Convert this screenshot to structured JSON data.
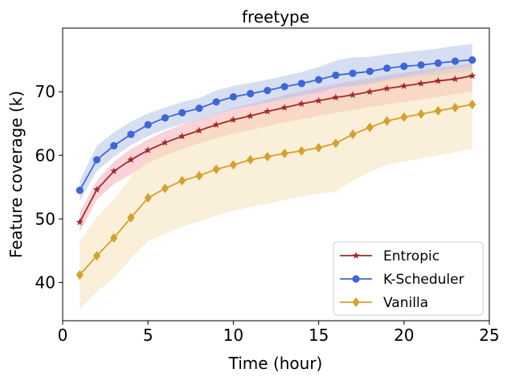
{
  "chart_data": {
    "type": "line",
    "title": "freetype",
    "xlabel": "Time (hour)",
    "ylabel": "Feature coverage (k)",
    "xlim": [
      0,
      25
    ],
    "ylim": [
      34,
      80
    ],
    "xticks": [
      0,
      5,
      10,
      15,
      20,
      25
    ],
    "yticks": [
      40,
      50,
      60,
      70
    ],
    "grid": false,
    "legend_position": "lower-right",
    "x": [
      1,
      2,
      3,
      4,
      5,
      6,
      7,
      8,
      9,
      10,
      11,
      12,
      13,
      14,
      15,
      16,
      17,
      18,
      19,
      20,
      21,
      22,
      23,
      24
    ],
    "series": [
      {
        "name": "Entropic",
        "color": "#a3282e",
        "marker": "star",
        "values": [
          49.5,
          54.6,
          57.5,
          59.3,
          60.8,
          62.0,
          63.0,
          63.9,
          64.8,
          65.6,
          66.2,
          66.9,
          67.5,
          68.1,
          68.6,
          69.1,
          69.5,
          70.0,
          70.5,
          70.9,
          71.3,
          71.7,
          72.0,
          72.5
        ],
        "band_lower": [
          48.0,
          53.0,
          55.5,
          57.0,
          58.8,
          60.0,
          61.0,
          61.9,
          62.7,
          63.4,
          64.0,
          64.6,
          65.2,
          65.7,
          66.2,
          66.7,
          67.1,
          67.6,
          68.0,
          68.4,
          68.8,
          69.2,
          69.6,
          70.0
        ],
        "band_upper": [
          51.0,
          56.0,
          59.0,
          61.0,
          62.5,
          63.8,
          64.8,
          65.7,
          66.6,
          67.4,
          68.1,
          68.8,
          69.5,
          70.1,
          70.7,
          71.2,
          71.7,
          72.1,
          72.6,
          73.0,
          73.4,
          73.8,
          74.1,
          74.5
        ],
        "band_color": "#f4a7b1"
      },
      {
        "name": "K-Scheduler",
        "color": "#3f66d6",
        "marker": "circle",
        "values": [
          54.5,
          59.3,
          61.5,
          63.3,
          64.8,
          65.9,
          66.7,
          67.4,
          68.4,
          69.2,
          69.7,
          70.2,
          70.8,
          71.3,
          71.9,
          72.6,
          72.9,
          73.2,
          73.7,
          74.0,
          74.2,
          74.5,
          74.8,
          75.0
        ],
        "band_lower": [
          52.8,
          57.5,
          59.8,
          61.6,
          63.0,
          64.1,
          64.9,
          65.6,
          66.5,
          67.2,
          67.8,
          68.3,
          68.9,
          69.4,
          69.9,
          70.6,
          70.9,
          71.3,
          71.8,
          72.1,
          72.4,
          72.7,
          73.0,
          73.3
        ],
        "band_upper": [
          56.0,
          61.5,
          63.6,
          65.3,
          66.6,
          67.5,
          68.4,
          69.0,
          70.2,
          70.9,
          71.4,
          71.9,
          72.5,
          73.1,
          73.9,
          74.9,
          75.4,
          75.5,
          75.9,
          76.2,
          76.5,
          76.8,
          77.2,
          77.5
        ],
        "band_color": "#aec0e6"
      },
      {
        "name": "Vanilla",
        "color": "#d4a12a",
        "marker": "diamond",
        "values": [
          41.2,
          44.2,
          47.0,
          50.2,
          53.3,
          54.8,
          56.0,
          56.8,
          57.8,
          58.5,
          59.3,
          59.8,
          60.3,
          60.7,
          61.2,
          61.9,
          63.3,
          64.4,
          65.4,
          66.0,
          66.5,
          67.0,
          67.5,
          68.0
        ],
        "band_lower": [
          35.8,
          38.5,
          40.8,
          43.8,
          46.5,
          47.7,
          48.8,
          49.6,
          50.5,
          51.3,
          51.9,
          52.4,
          53.0,
          53.5,
          54.0,
          54.3,
          56.0,
          57.4,
          58.5,
          59.0,
          59.5,
          60.0,
          60.5,
          61.0
        ],
        "band_upper": [
          46.5,
          50.3,
          53.0,
          56.6,
          60.0,
          61.9,
          63.3,
          64.4,
          65.4,
          66.4,
          67.1,
          67.6,
          68.1,
          68.6,
          69.1,
          69.6,
          70.4,
          71.2,
          71.9,
          72.4,
          72.8,
          73.3,
          73.7,
          74.1
        ],
        "band_color": "#f6dfb4"
      }
    ]
  }
}
